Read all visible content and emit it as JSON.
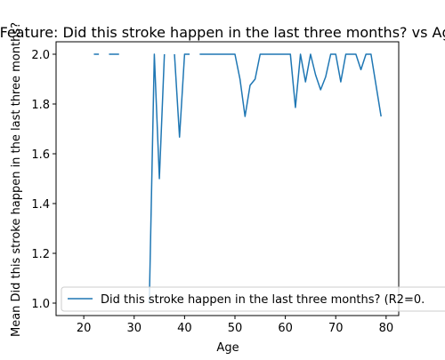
{
  "chart_data": {
    "type": "line",
    "title": "Feature: Did this stroke happen in the last three months? vs Age",
    "xlabel": "Age",
    "ylabel": "Mean Did this stroke happen in the last three months?",
    "xlim": [
      14.5,
      82.5
    ],
    "ylim": [
      0.95,
      2.05
    ],
    "xticks": [
      20,
      30,
      40,
      50,
      60,
      70,
      80
    ],
    "yticks": [
      1.0,
      1.2,
      1.4,
      1.6,
      1.8,
      2.0
    ],
    "ytick_labels": [
      "1.0",
      "1.2",
      "1.4",
      "1.6",
      "1.8",
      "2.0"
    ],
    "grid": false,
    "legend_position": "lower-right",
    "series": [
      {
        "name": "Did this stroke happen in the last three months? (R2=0.",
        "color": "#1f77b4",
        "segments": [
          [
            [
              22,
              2.0
            ],
            [
              23,
              2.0
            ]
          ],
          [
            [
              25,
              2.0
            ],
            [
              27,
              2.0
            ]
          ],
          [
            [
              33,
              1.0
            ],
            [
              34,
              2.0
            ],
            [
              35,
              1.5
            ],
            [
              36,
              2.0
            ]
          ],
          [
            [
              38,
              2.0
            ],
            [
              39,
              1.667
            ],
            [
              40,
              2.0
            ],
            [
              41,
              2.0
            ]
          ],
          [
            [
              43,
              2.0
            ],
            [
              44,
              2.0
            ],
            [
              45,
              2.0
            ],
            [
              46,
              2.0
            ],
            [
              47,
              2.0
            ],
            [
              48,
              2.0
            ],
            [
              49,
              2.0
            ],
            [
              50,
              2.0
            ],
            [
              51,
              1.9
            ],
            [
              52,
              1.75
            ],
            [
              53,
              1.875
            ],
            [
              54,
              1.9
            ],
            [
              55,
              2.0
            ],
            [
              56,
              2.0
            ],
            [
              57,
              2.0
            ],
            [
              58,
              2.0
            ],
            [
              59,
              2.0
            ],
            [
              60,
              2.0
            ],
            [
              61,
              2.0
            ],
            [
              62,
              1.786
            ],
            [
              63,
              2.0
            ],
            [
              64,
              1.889
            ],
            [
              65,
              2.0
            ],
            [
              66,
              1.917
            ],
            [
              67,
              1.857
            ],
            [
              68,
              1.909
            ],
            [
              69,
              2.0
            ],
            [
              70,
              2.0
            ],
            [
              71,
              1.889
            ],
            [
              72,
              2.0
            ],
            [
              73,
              2.0
            ],
            [
              74,
              2.0
            ],
            [
              75,
              1.938
            ],
            [
              76,
              2.0
            ],
            [
              77,
              2.0
            ],
            [
              78,
              1.875
            ],
            [
              79,
              1.75
            ]
          ]
        ]
      }
    ]
  }
}
